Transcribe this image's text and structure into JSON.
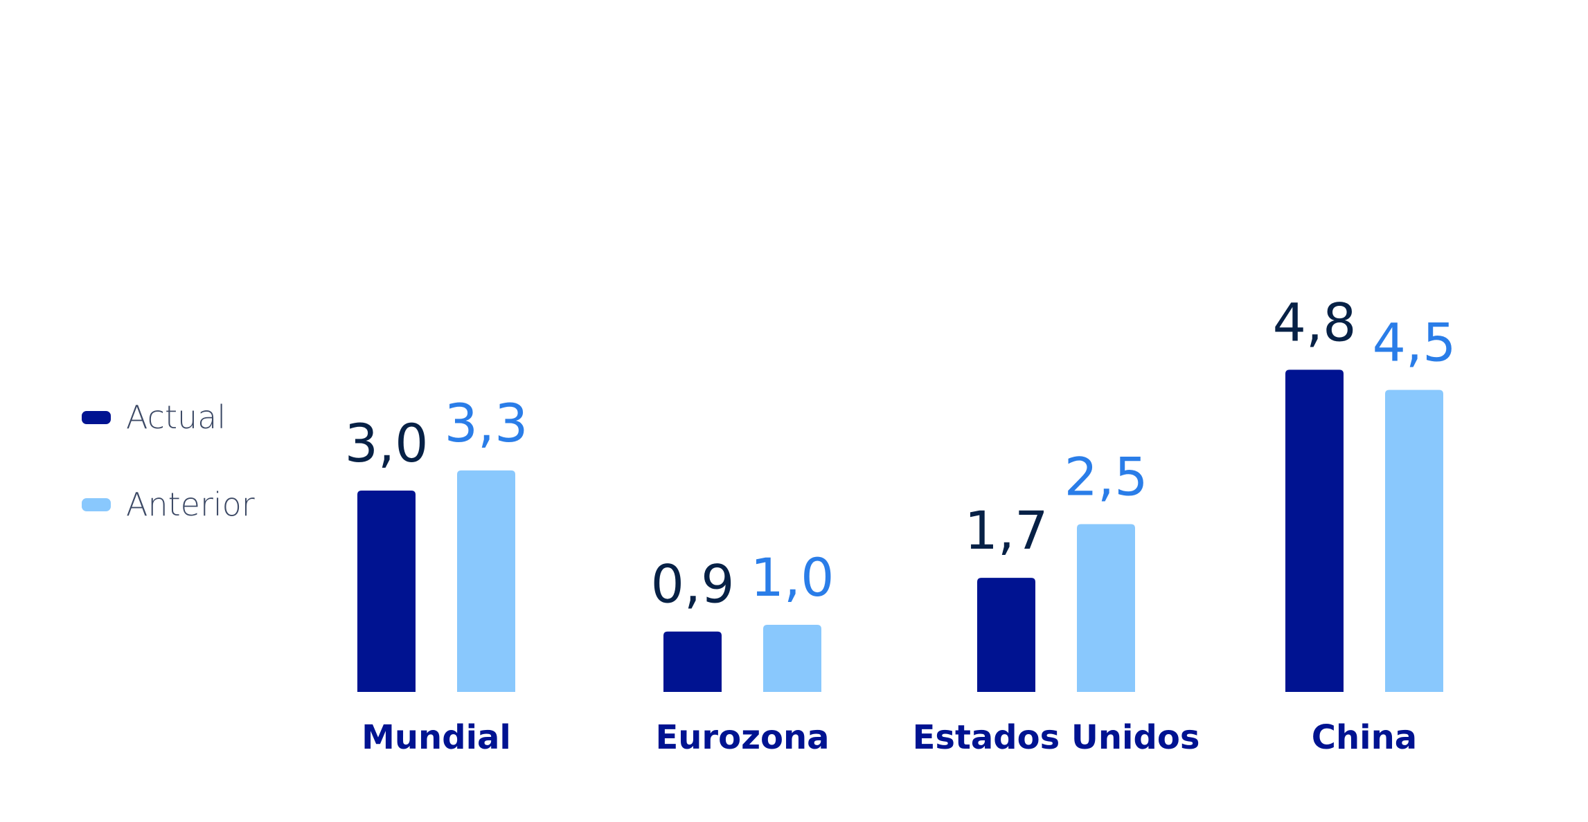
{
  "chart_data": {
    "type": "bar",
    "categories": [
      "Mundial",
      "Eurozona",
      "Estados Unidos",
      "China"
    ],
    "series": [
      {
        "name": "Actual",
        "values": [
          3.0,
          0.9,
          1.7,
          4.8
        ],
        "labels": [
          "3,0",
          "0,9",
          "1,7",
          "4,8"
        ],
        "color": "#001391",
        "label_color": "#072146"
      },
      {
        "name": "Anterior",
        "values": [
          3.3,
          1.0,
          2.5,
          4.5
        ],
        "labels": [
          "3,3",
          "1,0",
          "2,5",
          "4,5"
        ],
        "color": "#89c8fd",
        "label_color": "#2a7de8"
      }
    ],
    "title": "",
    "xlabel": "",
    "ylabel": "",
    "ylim": [
      0,
      6.5
    ],
    "grid": false,
    "legend_position": "left",
    "category_label_color": "#001391"
  },
  "legend": {
    "items": [
      {
        "label": "Actual",
        "color": "#001391"
      },
      {
        "label": "Anterior",
        "color": "#89c8fd"
      }
    ]
  }
}
